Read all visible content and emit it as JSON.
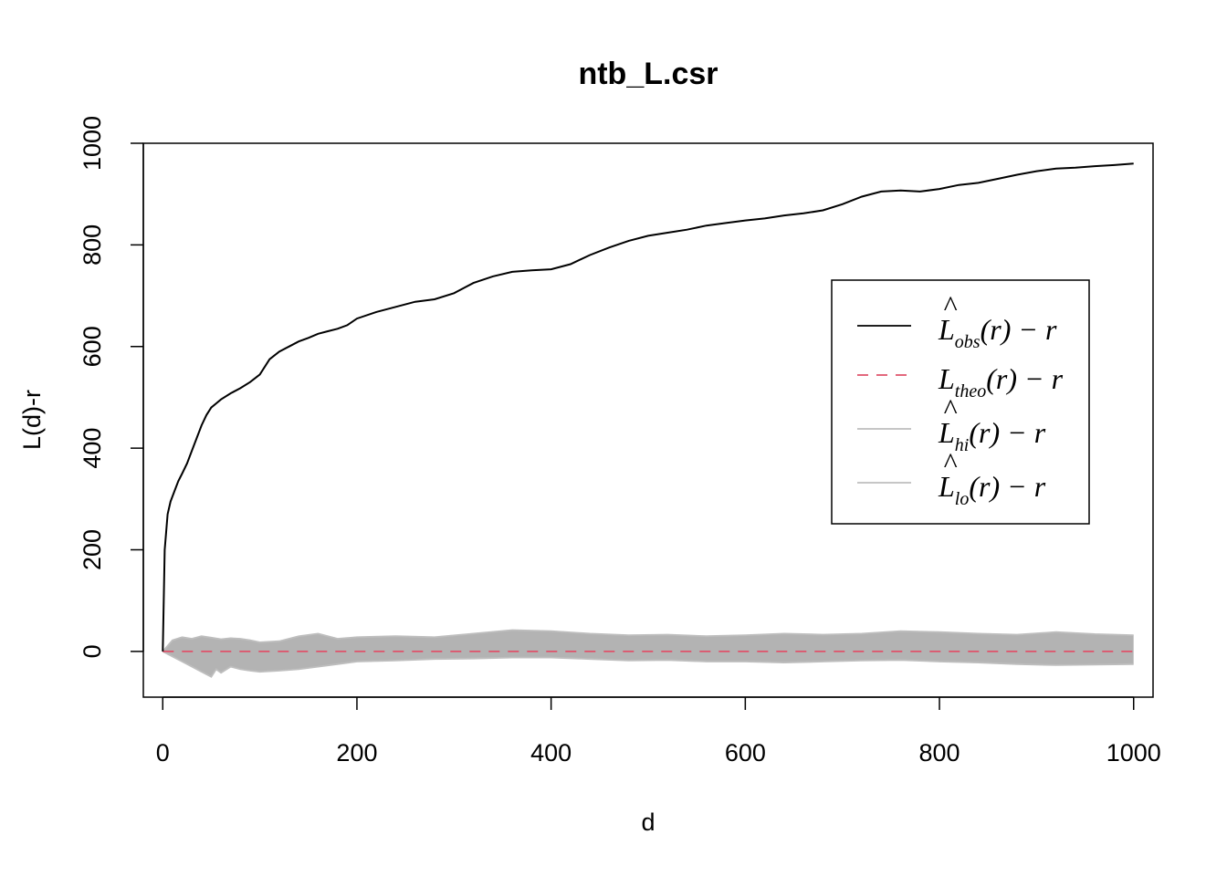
{
  "chart_data": {
    "type": "line",
    "title": "ntb_L.csr",
    "xlabel": "d",
    "ylabel": "L(d)-r",
    "xlim": [
      -20,
      1020
    ],
    "ylim": [
      -90,
      1000
    ],
    "x_ticks": [
      0,
      200,
      400,
      600,
      800,
      1000
    ],
    "y_ticks": [
      0,
      200,
      400,
      600,
      800,
      1000
    ],
    "x_tick_labels": [
      "0",
      "200",
      "400",
      "600",
      "800",
      "1000"
    ],
    "y_tick_labels": [
      "0",
      "200",
      "400",
      "600",
      "800",
      "1000"
    ],
    "grid": false,
    "legend_position": "right",
    "series": [
      {
        "name": "obs",
        "style": "solid",
        "color": "#000000",
        "x": [
          0,
          2,
          5,
          8,
          12,
          16,
          20,
          25,
          30,
          35,
          40,
          45,
          50,
          55,
          60,
          70,
          80,
          90,
          100,
          110,
          120,
          130,
          140,
          150,
          160,
          170,
          180,
          190,
          200,
          220,
          240,
          260,
          280,
          300,
          320,
          340,
          360,
          380,
          400,
          420,
          440,
          460,
          480,
          500,
          520,
          540,
          560,
          580,
          600,
          620,
          640,
          660,
          680,
          700,
          720,
          740,
          760,
          780,
          800,
          820,
          840,
          860,
          880,
          900,
          920,
          940,
          960,
          980,
          1000
        ],
        "values": [
          0,
          200,
          270,
          295,
          315,
          335,
          350,
          370,
          395,
          420,
          445,
          465,
          480,
          488,
          496,
          508,
          518,
          530,
          545,
          575,
          590,
          600,
          610,
          617,
          625,
          630,
          635,
          642,
          655,
          668,
          678,
          688,
          693,
          705,
          725,
          738,
          747,
          750,
          752,
          762,
          780,
          795,
          808,
          818,
          824,
          830,
          838,
          843,
          848,
          852,
          858,
          862,
          868,
          880,
          895,
          905,
          907,
          905,
          910,
          918,
          922,
          930,
          938,
          945,
          950,
          952,
          955,
          957,
          960
        ]
      },
      {
        "name": "theo",
        "style": "dashed",
        "color": "#DF536B",
        "x": [
          0,
          1000
        ],
        "values": [
          0,
          0
        ]
      },
      {
        "name": "hi",
        "style": "solid",
        "color": "#BEBEBE",
        "x": [
          0,
          10,
          20,
          30,
          40,
          50,
          60,
          70,
          80,
          90,
          100,
          120,
          140,
          160,
          180,
          200,
          240,
          280,
          320,
          360,
          400,
          440,
          480,
          520,
          560,
          600,
          640,
          680,
          720,
          760,
          800,
          840,
          880,
          920,
          960,
          1000
        ],
        "values": [
          0,
          22,
          28,
          25,
          30,
          27,
          24,
          26,
          25,
          22,
          18,
          20,
          30,
          35,
          25,
          28,
          30,
          28,
          35,
          42,
          40,
          35,
          32,
          33,
          30,
          32,
          35,
          33,
          35,
          40,
          38,
          35,
          33,
          38,
          34,
          32
        ]
      },
      {
        "name": "lo",
        "style": "solid",
        "color": "#BEBEBE",
        "x": [
          0,
          10,
          20,
          30,
          40,
          50,
          55,
          60,
          70,
          80,
          90,
          100,
          120,
          140,
          160,
          180,
          200,
          240,
          280,
          320,
          360,
          400,
          440,
          480,
          520,
          560,
          600,
          640,
          680,
          720,
          760,
          800,
          840,
          880,
          920,
          960,
          1000
        ],
        "values": [
          0,
          -10,
          -20,
          -30,
          -40,
          -50,
          -35,
          -42,
          -30,
          -35,
          -38,
          -40,
          -38,
          -35,
          -30,
          -25,
          -20,
          -18,
          -15,
          -14,
          -12,
          -12,
          -15,
          -18,
          -17,
          -20,
          -20,
          -22,
          -20,
          -18,
          -17,
          -20,
          -22,
          -25,
          -27,
          -26,
          -25
        ]
      }
    ],
    "legend": [
      {
        "series": "obs",
        "symbol": "L",
        "hat": true,
        "subscript": "obs",
        "suffix": "(r) − r",
        "style": "solid",
        "color": "#000000"
      },
      {
        "series": "theo",
        "symbol": "L",
        "hat": false,
        "subscript": "theo",
        "suffix": "(r) − r",
        "style": "dashed",
        "color": "#DF536B"
      },
      {
        "series": "hi",
        "symbol": "L",
        "hat": true,
        "subscript": "hi",
        "suffix": "(r) − r",
        "style": "solid",
        "color": "#BEBEBE"
      },
      {
        "series": "lo",
        "symbol": "L",
        "hat": true,
        "subscript": "lo",
        "suffix": "(r) − r",
        "style": "solid",
        "color": "#BEBEBE"
      }
    ],
    "envelope_fill_color": "#B3B3B3"
  }
}
